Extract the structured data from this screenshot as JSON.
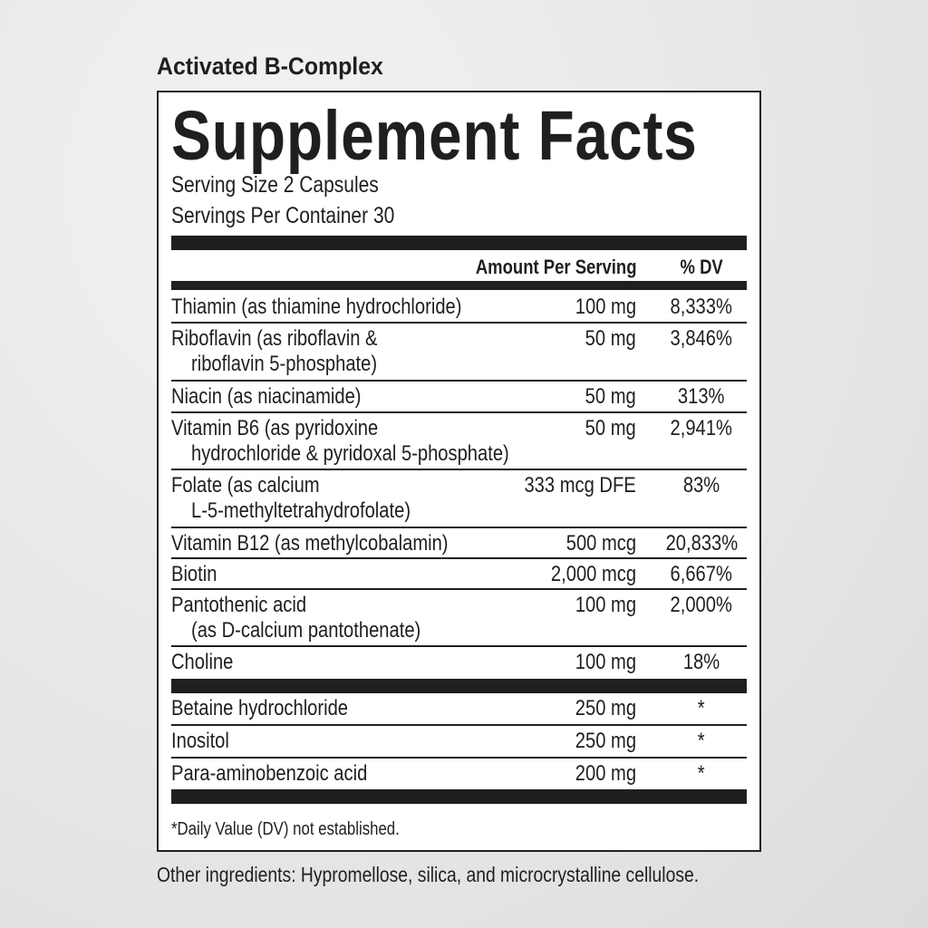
{
  "product_name": "Activated B-Complex",
  "label": {
    "title": "Supplement Facts",
    "serving_size": "Serving Size 2 Capsules",
    "servings_per_container": "Servings Per Container 30",
    "header": {
      "amount": "Amount Per Serving",
      "dv": "% DV"
    },
    "nutrients": [
      {
        "name": [
          "Thiamin (as thiamine hydrochloride)"
        ],
        "amount": "100 mg",
        "dv": "8,333%"
      },
      {
        "name": [
          "Riboflavin (as riboflavin &",
          "riboflavin 5-phosphate)"
        ],
        "amount": "50 mg",
        "dv": "3,846%"
      },
      {
        "name": [
          "Niacin (as niacinamide)"
        ],
        "amount": "50 mg",
        "dv": "313%"
      },
      {
        "name": [
          "Vitamin B6 (as pyridoxine",
          "hydrochloride & pyridoxal 5-phosphate)"
        ],
        "amount": "50 mg",
        "dv": "2,941%"
      },
      {
        "name": [
          "Folate (as calcium",
          "L-5-methyltetrahydrofolate)"
        ],
        "amount": "333 mcg DFE",
        "dv": "83%"
      },
      {
        "name": [
          "Vitamin B12 (as methylcobalamin)"
        ],
        "amount": "500 mcg",
        "dv": "20,833%"
      },
      {
        "name": [
          "Biotin"
        ],
        "amount": "2,000 mcg",
        "dv": "6,667%"
      },
      {
        "name": [
          "Pantothenic acid",
          "(as D-calcium pantothenate)"
        ],
        "amount": "100 mg",
        "dv": "2,000%"
      },
      {
        "name": [
          "Choline"
        ],
        "amount": "100 mg",
        "dv": "18%"
      }
    ],
    "other_nutrients": [
      {
        "name": [
          "Betaine hydrochloride"
        ],
        "amount": "250 mg",
        "dv": "*"
      },
      {
        "name": [
          "Inositol"
        ],
        "amount": "250 mg",
        "dv": "*"
      },
      {
        "name": [
          "Para-aminobenzoic acid"
        ],
        "amount": "200 mg",
        "dv": "*"
      }
    ],
    "footnote": "*Daily Value (DV) not established."
  },
  "other_ingredients": "Other ingredients: Hypromellose, silica, and microcrystalline cellulose."
}
